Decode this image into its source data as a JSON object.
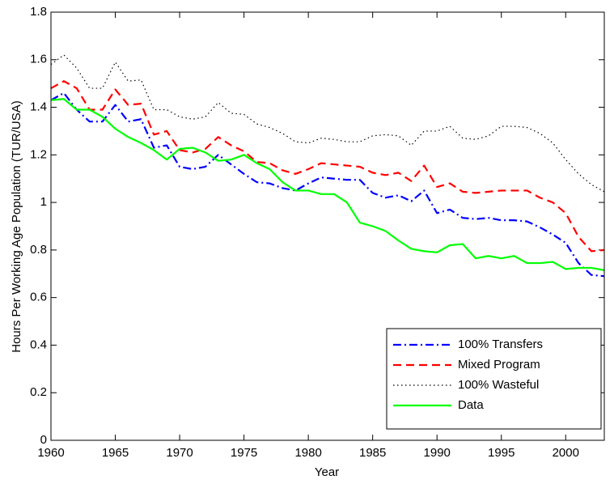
{
  "chart_data": {
    "type": "line",
    "xlabel": "Year",
    "ylabel": "Hours Per Working Age Population (TUR/USA)",
    "x": [
      1960,
      1961,
      1962,
      1963,
      1964,
      1965,
      1966,
      1967,
      1968,
      1969,
      1970,
      1971,
      1972,
      1973,
      1974,
      1975,
      1976,
      1977,
      1978,
      1979,
      1980,
      1981,
      1982,
      1983,
      1984,
      1985,
      1986,
      1987,
      1988,
      1989,
      1990,
      1991,
      1992,
      1993,
      1994,
      1995,
      1996,
      1997,
      1998,
      1999,
      2000,
      2001,
      2002,
      2003
    ],
    "xlim": [
      1960,
      2003
    ],
    "xticks": [
      1960,
      1965,
      1970,
      1975,
      1980,
      1985,
      1990,
      1995,
      2000
    ],
    "ylim": [
      0,
      1.8
    ],
    "yticks": [
      0,
      0.2,
      0.4,
      0.6,
      0.8,
      1,
      1.2,
      1.4,
      1.6,
      1.8
    ],
    "grid": false,
    "legend": "lower right",
    "series": [
      {
        "name": "100% Transfers",
        "color": "#0000ff",
        "linestyle": "dash-dot",
        "values": [
          1.43,
          1.46,
          1.39,
          1.34,
          1.34,
          1.41,
          1.34,
          1.35,
          1.23,
          1.24,
          1.15,
          1.14,
          1.15,
          1.2,
          1.16,
          1.12,
          1.085,
          1.08,
          1.06,
          1.05,
          1.08,
          1.105,
          1.1,
          1.095,
          1.095,
          1.04,
          1.02,
          1.03,
          1.005,
          1.05,
          0.955,
          0.97,
          0.935,
          0.93,
          0.935,
          0.925,
          0.925,
          0.92,
          0.895,
          0.865,
          0.83,
          0.745,
          0.695,
          0.69
        ]
      },
      {
        "name": "Mixed Program",
        "color": "#ff0000",
        "linestyle": "dashed",
        "values": [
          1.48,
          1.51,
          1.48,
          1.39,
          1.39,
          1.475,
          1.41,
          1.415,
          1.285,
          1.3,
          1.22,
          1.21,
          1.225,
          1.275,
          1.24,
          1.215,
          1.17,
          1.165,
          1.135,
          1.12,
          1.14,
          1.165,
          1.16,
          1.155,
          1.15,
          1.125,
          1.115,
          1.125,
          1.09,
          1.155,
          1.065,
          1.08,
          1.045,
          1.04,
          1.045,
          1.05,
          1.05,
          1.05,
          1.02,
          1.0,
          0.955,
          0.855,
          0.795,
          0.8
        ]
      },
      {
        "name": "100% Wasteful",
        "color": "#000000",
        "linestyle": "dotted",
        "values": [
          1.58,
          1.62,
          1.565,
          1.48,
          1.48,
          1.59,
          1.51,
          1.515,
          1.39,
          1.39,
          1.36,
          1.35,
          1.36,
          1.42,
          1.375,
          1.37,
          1.33,
          1.315,
          1.29,
          1.255,
          1.25,
          1.27,
          1.265,
          1.255,
          1.255,
          1.28,
          1.285,
          1.28,
          1.24,
          1.3,
          1.3,
          1.32,
          1.27,
          1.265,
          1.28,
          1.32,
          1.32,
          1.315,
          1.29,
          1.25,
          1.18,
          1.12,
          1.075,
          1.045
        ]
      },
      {
        "name": "Data",
        "color": "#00ff00",
        "linestyle": "solid",
        "values": [
          1.43,
          1.435,
          1.39,
          1.39,
          1.36,
          1.31,
          1.275,
          1.25,
          1.22,
          1.18,
          1.225,
          1.23,
          1.21,
          1.175,
          1.18,
          1.2,
          1.165,
          1.14,
          1.085,
          1.05,
          1.05,
          1.035,
          1.035,
          1.0,
          0.915,
          0.9,
          0.88,
          0.84,
          0.805,
          0.795,
          0.79,
          0.82,
          0.825,
          0.765,
          0.775,
          0.765,
          0.775,
          0.745,
          0.745,
          0.75,
          0.72,
          0.725,
          0.725,
          0.715
        ]
      }
    ]
  }
}
